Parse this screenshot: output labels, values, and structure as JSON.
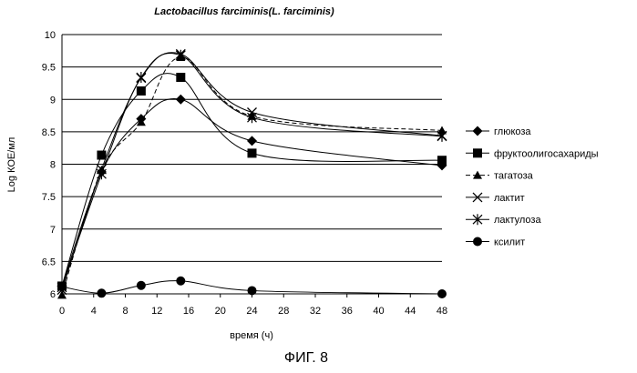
{
  "chart_data": {
    "type": "line",
    "title": "Lactobacillus farciminis(L. farciminis)",
    "xlabel": "время (ч)",
    "ylabel": "Log КОЕ/мл",
    "xlim": [
      0,
      48
    ],
    "ylim": [
      6,
      10
    ],
    "x_ticks": [
      0,
      4,
      8,
      12,
      16,
      20,
      24,
      28,
      32,
      36,
      40,
      44,
      48
    ],
    "y_ticks": [
      "6",
      "6.5",
      "7",
      "7.5",
      "8",
      "8.5",
      "9",
      "9.5",
      "10"
    ],
    "grid": "horizontal",
    "legend_position": "right",
    "series": [
      {
        "name": "глюкоза",
        "marker": "diamond",
        "dash": "solid",
        "x": [
          0,
          5,
          10,
          15,
          24,
          48
        ],
        "y": [
          6.12,
          7.88,
          8.7,
          9.0,
          8.36,
          7.98
        ]
      },
      {
        "name": "фруктоолигосахариды",
        "marker": "square",
        "dash": "solid",
        "x": [
          0,
          5,
          10,
          15,
          24,
          48
        ],
        "y": [
          6.12,
          8.14,
          9.13,
          9.34,
          8.17,
          8.06
        ]
      },
      {
        "name": "тагатоза",
        "marker": "triangle",
        "dash": "dashed",
        "x": [
          0,
          5,
          10,
          15,
          24,
          48
        ],
        "y": [
          5.98,
          7.91,
          8.65,
          9.65,
          8.74,
          8.52
        ]
      },
      {
        "name": "лактит",
        "marker": "x",
        "dash": "solid",
        "x": [
          0,
          5,
          10,
          15,
          24,
          48
        ],
        "y": [
          6.06,
          7.92,
          9.33,
          9.7,
          8.8,
          8.44
        ]
      },
      {
        "name": "лактулоза",
        "marker": "asterisk",
        "dash": "solid",
        "x": [
          0,
          5,
          10,
          15,
          24,
          48
        ],
        "y": [
          6.1,
          7.85,
          9.34,
          9.68,
          8.72,
          8.43
        ]
      },
      {
        "name": "ксилит",
        "marker": "circle",
        "dash": "solid",
        "x": [
          0,
          5,
          10,
          15,
          24,
          48
        ],
        "y": [
          6.11,
          6.01,
          6.13,
          6.2,
          6.05,
          6.0
        ]
      }
    ]
  },
  "figure": {
    "caption": "ФИГ. 8"
  }
}
